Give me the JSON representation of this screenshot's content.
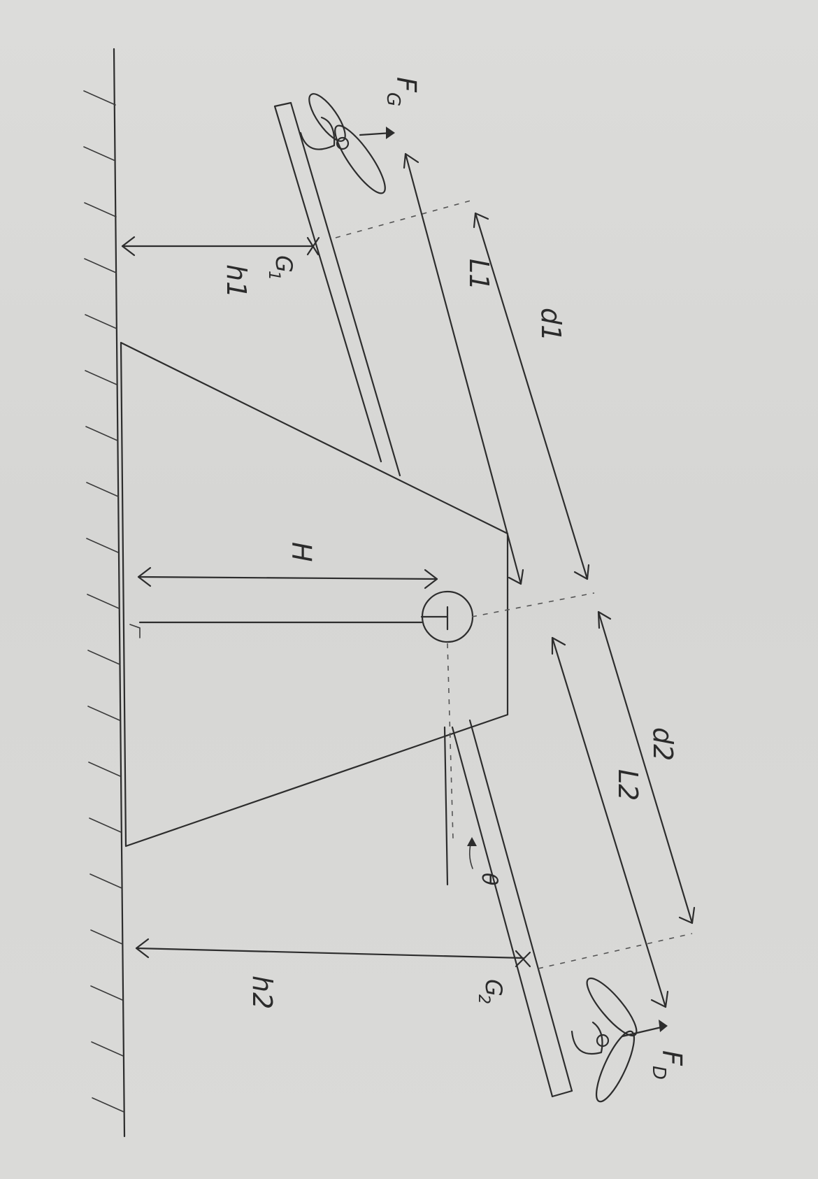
{
  "labels": {
    "FG": "F",
    "FG_sub": "G",
    "FD": "F",
    "FD_sub": "D",
    "G1": "G",
    "G1_sub": "1",
    "G2": "G",
    "G2_sub": "2",
    "h1": "h1",
    "h2": "h2",
    "L1": "L1",
    "L2": "L2",
    "d1": "d1",
    "d2": "d2",
    "H": "H",
    "theta": "θ"
  }
}
